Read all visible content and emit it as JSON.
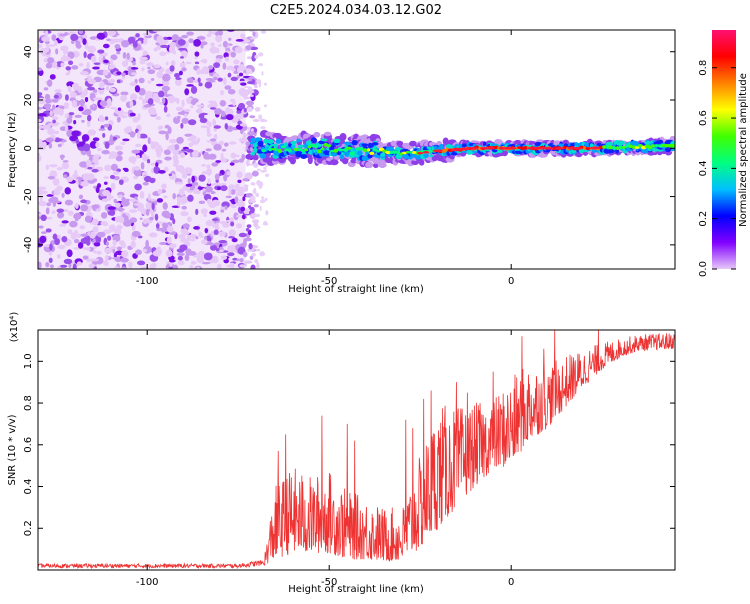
{
  "title": "C2E5.2024.034.03.12.G02",
  "chart_data": [
    {
      "type": "heatmap",
      "xlabel": "Height of straight line (km)",
      "ylabel": "Frequency (Hz)",
      "xlim": [
        -130,
        45
      ],
      "ylim": [
        -50,
        49
      ],
      "xticks": [
        -100,
        -50,
        0
      ],
      "yticks": [
        -40,
        -20,
        0,
        20,
        40
      ],
      "grid": false,
      "description_points": {
        "noise_region_x": [
          -130,
          -73
        ],
        "signal_center_freq": [
          {
            "x": -70,
            "y": 0
          },
          {
            "x": -60,
            "y": 0
          },
          {
            "x": -50,
            "y": 0
          },
          {
            "x": -40,
            "y": -1
          },
          {
            "x": -30,
            "y": -2
          },
          {
            "x": -25,
            "y": -2
          },
          {
            "x": -20,
            "y": -1
          },
          {
            "x": -10,
            "y": 0
          },
          {
            "x": 0,
            "y": 0
          },
          {
            "x": 10,
            "y": 0
          },
          {
            "x": 20,
            "y": 0
          },
          {
            "x": 30,
            "y": 0.5
          },
          {
            "x": 45,
            "y": 1
          }
        ]
      },
      "colorbar": {
        "label": "Normalized spectral amplitude",
        "ticks": [
          "0.0",
          "0.2",
          "0.4",
          "0.6",
          "0.8"
        ],
        "range": [
          0,
          0.95
        ],
        "colors": [
          "#e8c8f8",
          "#8000ff",
          "#0000ff",
          "#00c0ff",
          "#00ff80",
          "#40ff00",
          "#ffff00",
          "#ff8000",
          "#ff0000",
          "#ff1070"
        ]
      }
    },
    {
      "type": "line",
      "xlabel": "Height of straight line (km)",
      "ylabel": "SNR (10 * v/v)",
      "scale_label": "(x10⁴)",
      "xlim": [
        -130,
        45
      ],
      "ylim": [
        0,
        1.15
      ],
      "xticks": [
        -100,
        -50,
        0
      ],
      "yticks": [
        "0.2",
        "0.4",
        "0.6",
        "0.8",
        "1.0"
      ],
      "series_color": "#ee3333",
      "envelope": [
        {
          "x": -130,
          "lo": 0.01,
          "hi": 0.03
        },
        {
          "x": -75,
          "lo": 0.01,
          "hi": 0.03
        },
        {
          "x": -68,
          "lo": 0.02,
          "hi": 0.05
        },
        {
          "x": -65,
          "lo": 0.05,
          "hi": 0.4
        },
        {
          "x": -60,
          "lo": 0.08,
          "hi": 0.5
        },
        {
          "x": -55,
          "lo": 0.08,
          "hi": 0.45
        },
        {
          "x": -50,
          "lo": 0.08,
          "hi": 0.48
        },
        {
          "x": -45,
          "lo": 0.05,
          "hi": 0.38
        },
        {
          "x": -40,
          "lo": 0.05,
          "hi": 0.35
        },
        {
          "x": -35,
          "lo": 0.04,
          "hi": 0.3
        },
        {
          "x": -30,
          "lo": 0.04,
          "hi": 0.3
        },
        {
          "x": -25,
          "lo": 0.1,
          "hi": 0.55
        },
        {
          "x": -20,
          "lo": 0.2,
          "hi": 0.8
        },
        {
          "x": -15,
          "lo": 0.3,
          "hi": 0.78
        },
        {
          "x": -10,
          "lo": 0.4,
          "hi": 0.8
        },
        {
          "x": -5,
          "lo": 0.48,
          "hi": 0.82
        },
        {
          "x": 0,
          "lo": 0.5,
          "hi": 0.92
        },
        {
          "x": 5,
          "lo": 0.62,
          "hi": 1.0
        },
        {
          "x": 10,
          "lo": 0.68,
          "hi": 0.98
        },
        {
          "x": 15,
          "lo": 0.78,
          "hi": 1.03
        },
        {
          "x": 20,
          "lo": 0.88,
          "hi": 1.06
        },
        {
          "x": 25,
          "lo": 0.96,
          "hi": 1.09
        },
        {
          "x": 30,
          "lo": 1.02,
          "hi": 1.11
        },
        {
          "x": 35,
          "lo": 1.05,
          "hi": 1.13
        },
        {
          "x": 45,
          "lo": 1.06,
          "hi": 1.14
        }
      ],
      "spikes": [
        {
          "x": -64,
          "y": 0.57
        },
        {
          "x": -62,
          "y": 0.65
        },
        {
          "x": -52,
          "y": 0.74
        },
        {
          "x": -45,
          "y": 0.7
        },
        {
          "x": -43,
          "y": 0.62
        },
        {
          "x": -29,
          "y": 0.72
        },
        {
          "x": -27,
          "y": 0.68
        },
        {
          "x": -24,
          "y": 0.82
        },
        {
          "x": -22,
          "y": 0.86
        },
        {
          "x": -15,
          "y": 0.9
        },
        {
          "x": -12,
          "y": 0.85
        },
        {
          "x": -5,
          "y": 0.95
        },
        {
          "x": 3,
          "y": 1.12
        },
        {
          "x": 9,
          "y": 1.06
        },
        {
          "x": 12,
          "y": 1.15
        },
        {
          "x": 24,
          "y": 1.15
        }
      ]
    }
  ]
}
